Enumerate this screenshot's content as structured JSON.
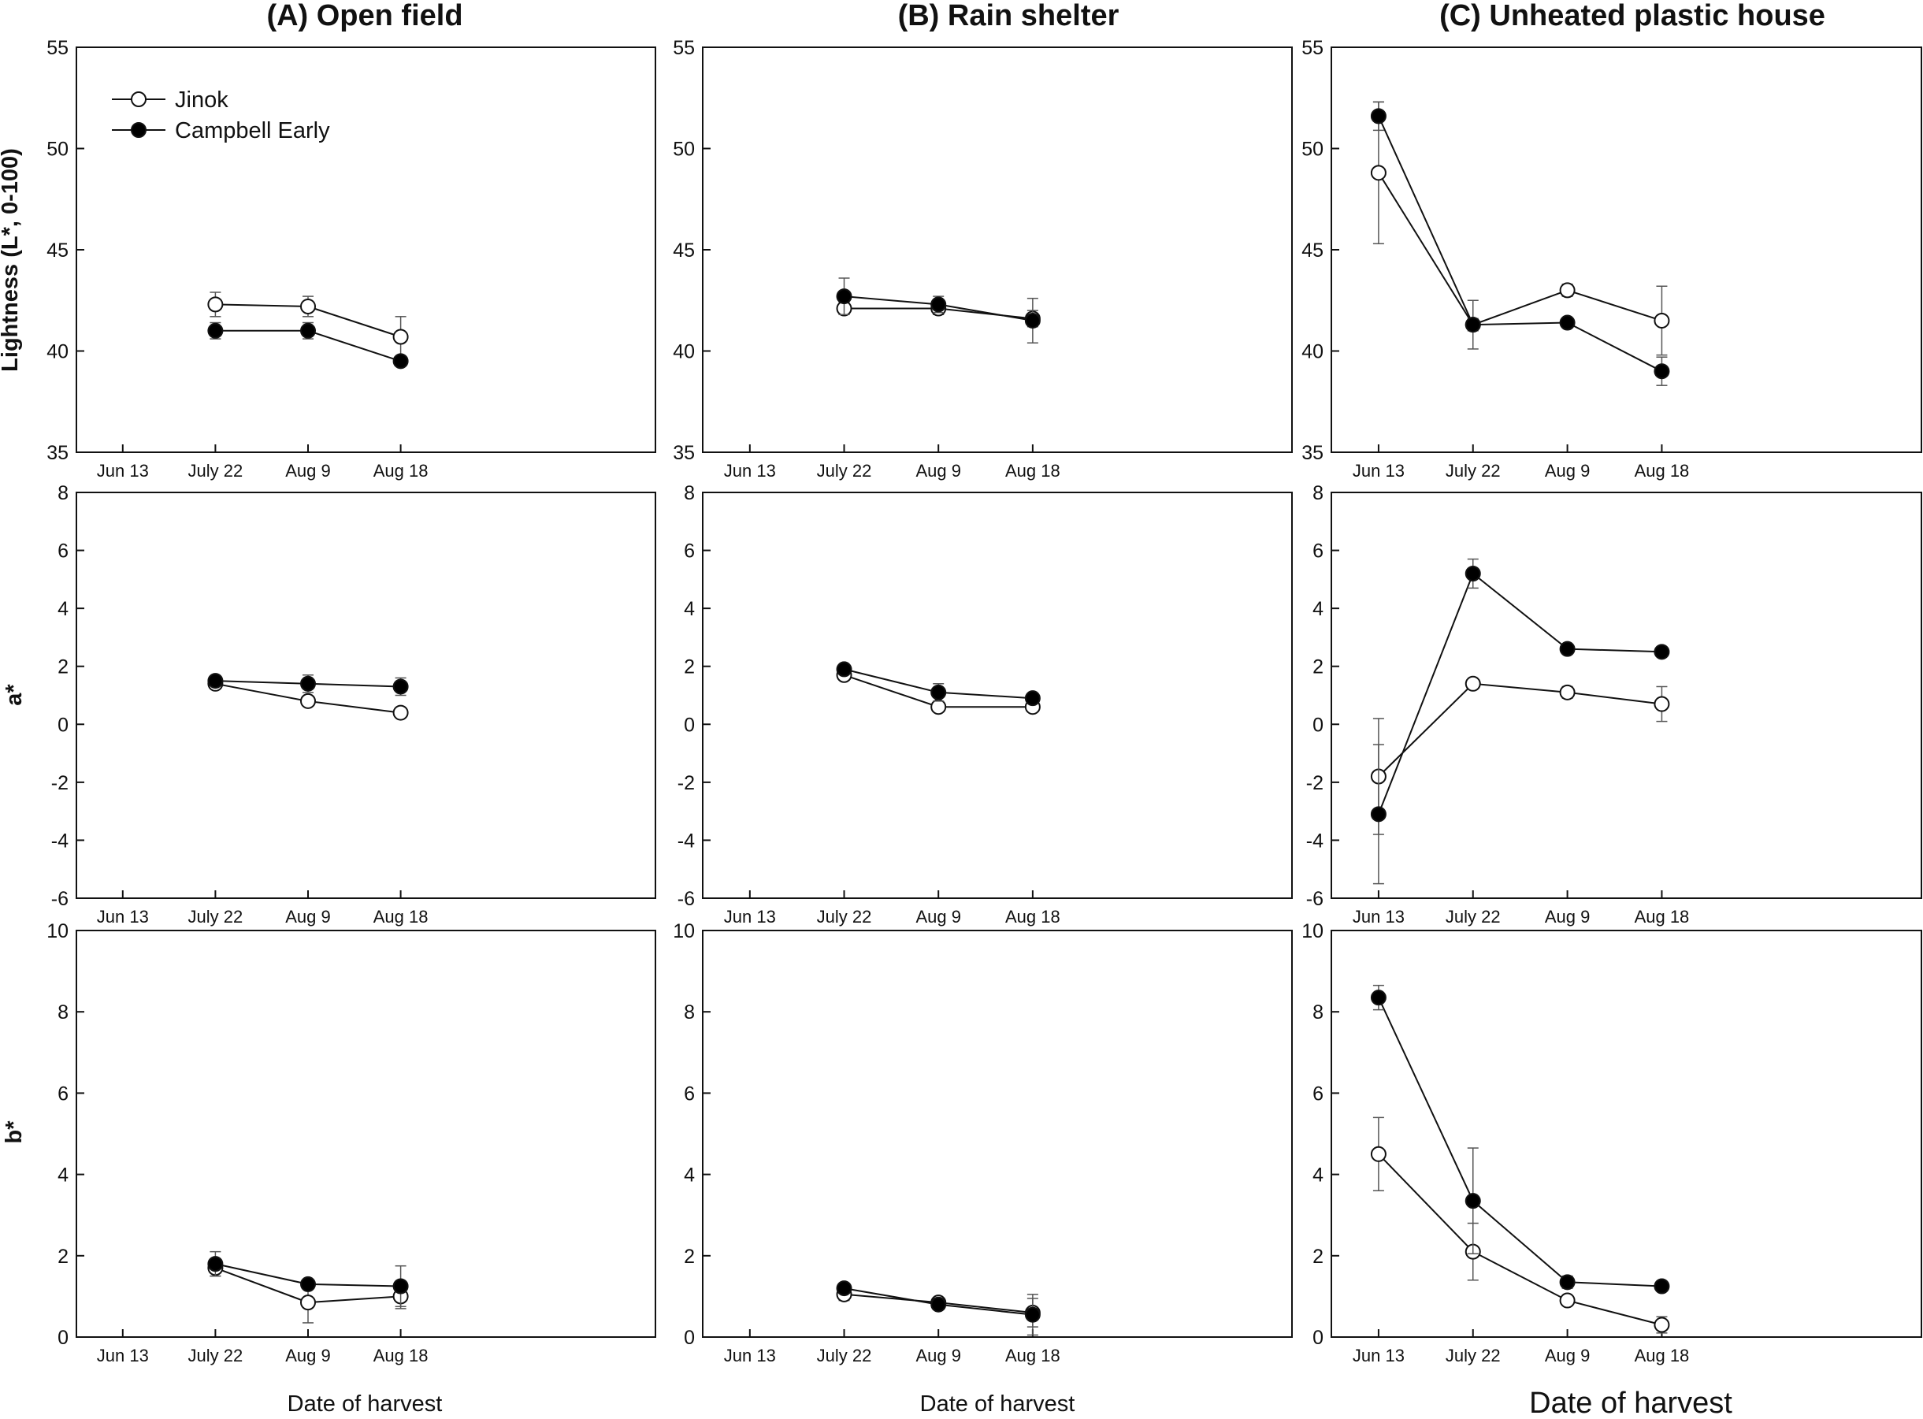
{
  "figure": {
    "panel_titles": [
      "(A) Open field",
      "(B) Rain shelter",
      "(C) Unheated plastic house"
    ],
    "row_labels": [
      "Lightness (L*, 0-100)",
      "a*",
      "b*"
    ],
    "x_labels": [
      "Date of harvest",
      "Date of harvest",
      "Date of harvest"
    ],
    "legend": [
      {
        "label": "Jinok",
        "marker": "open-circle"
      },
      {
        "label": "Campbell Early",
        "marker": "filled-circle"
      }
    ],
    "colors": {
      "line": "#111111",
      "open_fill": "#ffffff",
      "filled_fill": "#000000",
      "error_bar": "#555555"
    }
  },
  "chart_data": [
    {
      "type": "line",
      "panel": "A",
      "row": "L",
      "title": "(A) Open field",
      "ylabel": "Lightness (L*, 0-100)",
      "xlabel": "",
      "categories": [
        "Jun 13",
        "July 22",
        "Aug 9",
        "Aug 18"
      ],
      "ylim": [
        35,
        55
      ],
      "yticks": [
        35,
        40,
        45,
        50,
        55
      ],
      "series": [
        {
          "name": "Jinok",
          "values": [
            null,
            42.3,
            42.2,
            40.7
          ],
          "errors": [
            null,
            0.6,
            0.5,
            1.0
          ]
        },
        {
          "name": "Campbell Early",
          "values": [
            null,
            41.0,
            41.0,
            39.5
          ],
          "errors": [
            null,
            0.4,
            0.4,
            0.2
          ]
        }
      ]
    },
    {
      "type": "line",
      "panel": "B",
      "row": "L",
      "title": "(B) Rain shelter",
      "ylabel": "",
      "xlabel": "",
      "categories": [
        "Jun 13",
        "July 22",
        "Aug 9",
        "Aug 18"
      ],
      "ylim": [
        35,
        55
      ],
      "yticks": [
        35,
        40,
        45,
        50,
        55
      ],
      "series": [
        {
          "name": "Jinok",
          "values": [
            null,
            42.1,
            42.1,
            41.6
          ],
          "errors": [
            null,
            0.3,
            0.3,
            0.4
          ]
        },
        {
          "name": "Campbell Early",
          "values": [
            null,
            42.7,
            42.3,
            41.5
          ],
          "errors": [
            null,
            0.9,
            0.4,
            1.1
          ]
        }
      ]
    },
    {
      "type": "line",
      "panel": "C",
      "row": "L",
      "title": "(C) Unheated plastic house",
      "ylabel": "",
      "xlabel": "",
      "categories": [
        "Jun 13",
        "July 22",
        "Aug 9",
        "Aug 18"
      ],
      "ylim": [
        35,
        55
      ],
      "yticks": [
        35,
        40,
        45,
        50,
        55
      ],
      "series": [
        {
          "name": "Jinok",
          "values": [
            48.8,
            41.3,
            43.0,
            41.5
          ],
          "errors": [
            3.5,
            1.2,
            0.3,
            1.7
          ]
        },
        {
          "name": "Campbell Early",
          "values": [
            51.6,
            41.3,
            41.4,
            39.0
          ],
          "errors": [
            0.7,
            0.3,
            0.2,
            0.7
          ]
        }
      ]
    },
    {
      "type": "line",
      "panel": "A",
      "row": "a",
      "title": "",
      "ylabel": "a*",
      "xlabel": "",
      "categories": [
        "Jun 13",
        "July 22",
        "Aug 9",
        "Aug 18"
      ],
      "ylim": [
        -6,
        8
      ],
      "yticks": [
        -6,
        -4,
        -2,
        0,
        2,
        4,
        6,
        8
      ],
      "series": [
        {
          "name": "Jinok",
          "values": [
            null,
            1.4,
            0.8,
            0.4
          ],
          "errors": [
            null,
            0.15,
            0.1,
            0.1
          ]
        },
        {
          "name": "Campbell Early",
          "values": [
            null,
            1.5,
            1.4,
            1.3
          ],
          "errors": [
            null,
            0.15,
            0.3,
            0.3
          ]
        }
      ]
    },
    {
      "type": "line",
      "panel": "B",
      "row": "a",
      "title": "",
      "ylabel": "",
      "xlabel": "",
      "categories": [
        "Jun 13",
        "July 22",
        "Aug 9",
        "Aug 18"
      ],
      "ylim": [
        -6,
        8
      ],
      "yticks": [
        -6,
        -4,
        -2,
        0,
        2,
        4,
        6,
        8
      ],
      "series": [
        {
          "name": "Jinok",
          "values": [
            null,
            1.7,
            0.6,
            0.6
          ],
          "errors": [
            null,
            0.15,
            0.1,
            0.1
          ]
        },
        {
          "name": "Campbell Early",
          "values": [
            null,
            1.9,
            1.1,
            0.9
          ],
          "errors": [
            null,
            0.1,
            0.3,
            0.15
          ]
        }
      ]
    },
    {
      "type": "line",
      "panel": "C",
      "row": "a",
      "title": "",
      "ylabel": "",
      "xlabel": "",
      "categories": [
        "Jun 13",
        "July 22",
        "Aug 9",
        "Aug 18"
      ],
      "ylim": [
        -6,
        8
      ],
      "yticks": [
        -6,
        -4,
        -2,
        0,
        2,
        4,
        6,
        8
      ],
      "series": [
        {
          "name": "Jinok",
          "values": [
            -1.8,
            1.4,
            1.1,
            0.7
          ],
          "errors": [
            2.0,
            0.15,
            0.2,
            0.6
          ]
        },
        {
          "name": "Campbell Early",
          "values": [
            -3.1,
            5.2,
            2.6,
            2.5
          ],
          "errors": [
            2.4,
            0.5,
            0.1,
            0.1
          ]
        }
      ]
    },
    {
      "type": "line",
      "panel": "A",
      "row": "b",
      "title": "",
      "ylabel": "b*",
      "xlabel": "Date of harvest",
      "categories": [
        "Jun 13",
        "July 22",
        "Aug 9",
        "Aug 18"
      ],
      "ylim": [
        0,
        10
      ],
      "yticks": [
        0,
        2,
        4,
        6,
        8,
        10
      ],
      "series": [
        {
          "name": "Jinok",
          "values": [
            null,
            1.7,
            0.85,
            1.0
          ],
          "errors": [
            null,
            0.2,
            0.5,
            0.3
          ]
        },
        {
          "name": "Campbell Early",
          "values": [
            null,
            1.8,
            1.3,
            1.25
          ],
          "errors": [
            null,
            0.3,
            0.1,
            0.5
          ]
        }
      ]
    },
    {
      "type": "line",
      "panel": "B",
      "row": "b",
      "title": "",
      "ylabel": "",
      "xlabel": "Date of harvest",
      "categories": [
        "Jun 13",
        "July 22",
        "Aug 9",
        "Aug 18"
      ],
      "ylim": [
        0,
        10
      ],
      "yticks": [
        0,
        2,
        4,
        6,
        8,
        10
      ],
      "series": [
        {
          "name": "Jinok",
          "values": [
            null,
            1.05,
            0.85,
            0.6
          ],
          "errors": [
            null,
            0.15,
            0.1,
            0.35
          ]
        },
        {
          "name": "Campbell Early",
          "values": [
            null,
            1.2,
            0.8,
            0.55
          ],
          "errors": [
            null,
            0.1,
            0.1,
            0.5
          ]
        }
      ]
    },
    {
      "type": "line",
      "panel": "C",
      "row": "b",
      "title": "",
      "ylabel": "",
      "xlabel": "Date of harvest",
      "categories": [
        "Jun 13",
        "July 22",
        "Aug 9",
        "Aug 18"
      ],
      "ylim": [
        0,
        10
      ],
      "yticks": [
        0,
        2,
        4,
        6,
        8,
        10
      ],
      "series": [
        {
          "name": "Jinok",
          "values": [
            4.5,
            2.1,
            0.9,
            0.3
          ],
          "errors": [
            0.9,
            0.7,
            0.1,
            0.2
          ]
        },
        {
          "name": "Campbell Early",
          "values": [
            8.35,
            3.35,
            1.35,
            1.25
          ],
          "errors": [
            0.3,
            1.3,
            0.15,
            0.05
          ]
        }
      ]
    }
  ]
}
